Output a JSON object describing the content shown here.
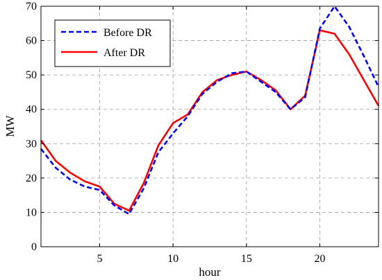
{
  "chart_data": {
    "type": "line",
    "title": "",
    "xlabel": "hour",
    "ylabel": "MW",
    "xlim": [
      1,
      24
    ],
    "ylim": [
      0,
      70
    ],
    "xticks": [
      5,
      10,
      15,
      20
    ],
    "yticks": [
      0,
      10,
      20,
      30,
      40,
      50,
      60,
      70
    ],
    "grid": true,
    "legend_position": "top-left",
    "x": [
      1,
      2,
      3,
      4,
      5,
      6,
      7,
      8,
      9,
      10,
      11,
      12,
      13,
      14,
      15,
      16,
      17,
      18,
      19,
      20,
      21,
      22,
      23,
      24
    ],
    "series": [
      {
        "name": "Before DR",
        "color": "#0000ff",
        "style": "dashed",
        "values": [
          28.5,
          23,
          19.5,
          17.5,
          16.5,
          12,
          9.5,
          17,
          27.5,
          33,
          38,
          44.5,
          48,
          50.5,
          51,
          48,
          45,
          40,
          43.5,
          63.5,
          70,
          64,
          55.5,
          46.5
        ]
      },
      {
        "name": "After DR",
        "color": "#ff0000",
        "style": "solid",
        "values": [
          31,
          25,
          21.5,
          19,
          17.5,
          12.5,
          10.5,
          18.5,
          29.5,
          36,
          38.5,
          45,
          48.5,
          50,
          51,
          48.5,
          45.5,
          40,
          44,
          63,
          62,
          56,
          48.5,
          41
        ]
      }
    ]
  }
}
